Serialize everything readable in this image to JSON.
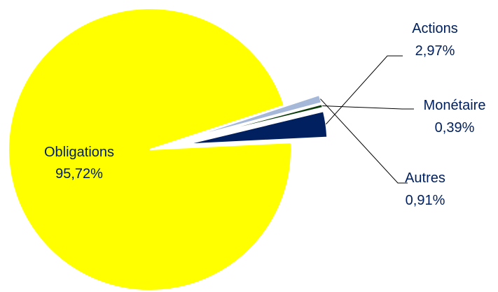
{
  "chart_data": {
    "type": "pie",
    "title": "",
    "slices": [
      {
        "label": "Obligations",
        "value_label": "95,72%",
        "value": 95.72,
        "color": "#FFFF00"
      },
      {
        "label": "Actions",
        "value_label": "2,97%",
        "value": 2.97,
        "color": "#002060"
      },
      {
        "label": "Monétaire",
        "value_label": "0,39%",
        "value": 0.39,
        "color": "#0B3D0B"
      },
      {
        "label": "Autres",
        "value_label": "0,91%",
        "value": 0.91,
        "color": "#A6B8D8"
      }
    ],
    "label_colors": {
      "Obligations": "#002060",
      "Actions": "#002060",
      "Monétaire": "#002060",
      "Autres": "#002060"
    },
    "exploded": [
      "Actions",
      "Monétaire",
      "Autres"
    ],
    "legend": "none"
  }
}
